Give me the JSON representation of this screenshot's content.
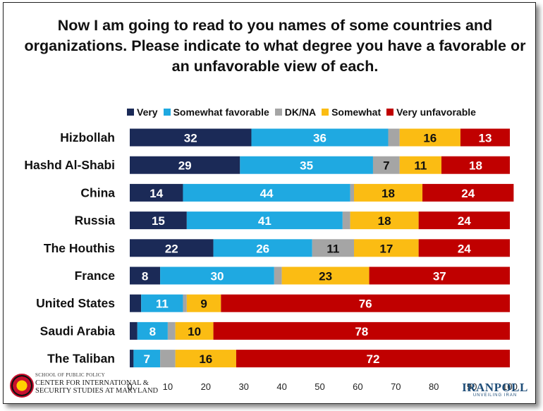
{
  "title": "Now I am going to read to you names of some countries and organizations. Please indicate to what degree you have a favorable or an unfavorable view of each.",
  "chart_data": {
    "type": "bar",
    "orientation": "horizontal",
    "stacked": true,
    "categories": [
      "Hizbollah",
      "Hashd Al-Shabi",
      "China",
      "Russia",
      "The Houthis",
      "France",
      "United States",
      "Saudi Arabia",
      "The Taliban"
    ],
    "series": [
      {
        "name": "Very",
        "color": "#1b2a57",
        "values": [
          32,
          29,
          14,
          15,
          22,
          8,
          3,
          2,
          1
        ]
      },
      {
        "name": "Somewhat favorable",
        "color": "#1fa9e1",
        "values": [
          36,
          35,
          44,
          41,
          26,
          30,
          11,
          8,
          7
        ]
      },
      {
        "name": "DK/NA",
        "color": "#a5a5a5",
        "values": [
          3,
          7,
          1,
          2,
          11,
          2,
          1,
          2,
          4
        ]
      },
      {
        "name": "Somewhat",
        "color": "#fbbc13",
        "values": [
          16,
          11,
          18,
          18,
          17,
          23,
          9,
          10,
          16
        ]
      },
      {
        "name": "Very unfavorable",
        "color": "#c00000",
        "values": [
          13,
          18,
          24,
          24,
          24,
          37,
          76,
          78,
          72
        ]
      }
    ],
    "labeled_min": 7,
    "xlim": [
      0,
      100
    ],
    "xticks": [
      0,
      10,
      20,
      30,
      40,
      50,
      60,
      70,
      80,
      90,
      100
    ],
    "legend_position": "top"
  },
  "logos": {
    "left_school": "SCHOOL OF PUBLIC POLICY",
    "left_center": "CENTER FOR INTERNATIONAL &\nSECURITY STUDIES AT MARYLAND",
    "right_name": "IRANPOLL",
    "right_tagline": "UNVEILING IRAN"
  }
}
